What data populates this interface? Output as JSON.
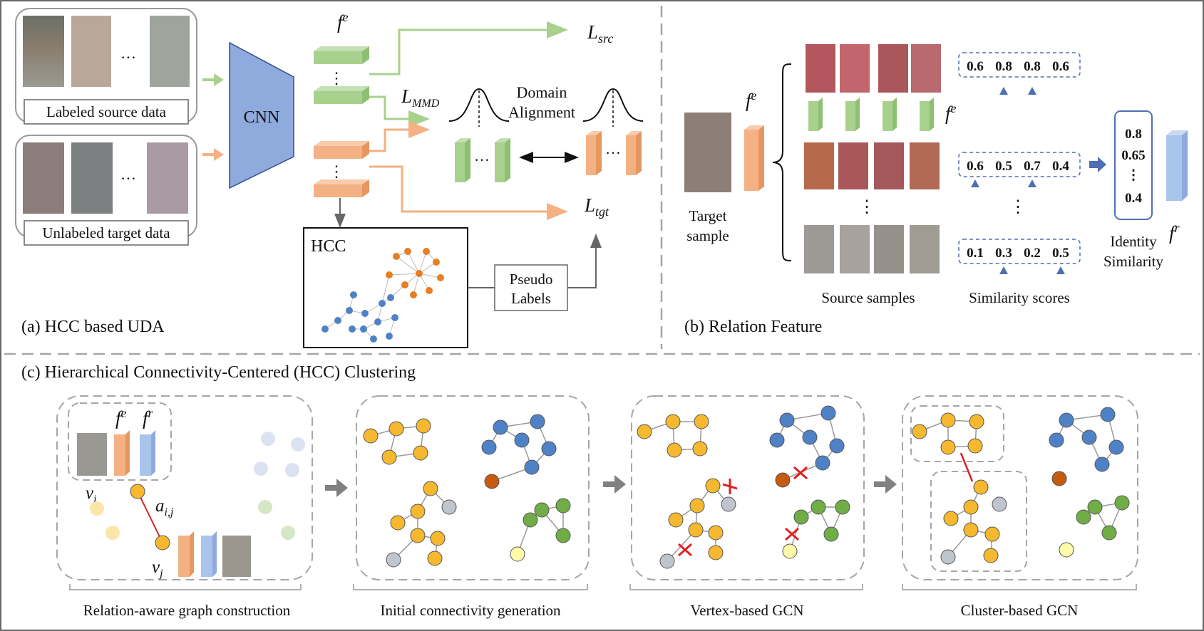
{
  "panel_a": {
    "caption": "(a) HCC based UDA",
    "source_label": "Labeled source data",
    "target_label": "Unlabeled target data",
    "ellipsis": "…",
    "cnn": "CNN",
    "fe_base": "f",
    "fe_sup": "e",
    "l_src_base": "L",
    "l_src_sub": "src",
    "l_mmd_base": "L",
    "l_mmd_sub": "MMD",
    "l_tgt_base": "L",
    "l_tgt_sub": "tgt",
    "domain_alignment_1": "Domain",
    "domain_alignment_2": "Alignment",
    "hcc": "HCC",
    "pseudo_1": "Pseudo",
    "pseudo_2": "Labels",
    "vdots": "⋮"
  },
  "panel_b": {
    "caption": "(b) Relation Feature",
    "target_1": "Target",
    "target_2": "sample",
    "source_samples": "Source samples",
    "similarity_scores": "Similarity scores",
    "identity_1": "Identity",
    "identity_2": "Similarity",
    "fe_base": "f",
    "fe_sup": "e",
    "fr_base": "f",
    "fr_sup": "r",
    "scores_row1": [
      "0.6",
      "0.8",
      "0.8",
      "0.6"
    ],
    "scores_row2": [
      "0.6",
      "0.5",
      "0.7",
      "0.4"
    ],
    "scores_row3": [
      "0.1",
      "0.3",
      "0.2",
      "0.5"
    ],
    "identity_values": [
      "0.8",
      "0.65",
      "⋮",
      "0.4"
    ],
    "vdots": "⋮"
  },
  "panel_c": {
    "caption": "(c) Hierarchical Connectivity-Centered (HCC)  Clustering",
    "step1": "Relation-aware graph construction",
    "step2": "Initial connectivity generation",
    "step3": "Vertex-based GCN",
    "step4": "Cluster-based GCN",
    "vi_base": "v",
    "vi_sub": "i",
    "vj_base": "v",
    "vj_sub": "j",
    "aij_base": "a",
    "aij_sub": "i,j",
    "fe_base": "f",
    "fe_sup": "e",
    "fr_base": "f",
    "fr_sup": "r"
  },
  "colors": {
    "green": "#a9d18e",
    "orange": "#f4b183",
    "cnn": "#8faadc",
    "node_yellow": "#f5b82e",
    "node_blue": "#4f81c7",
    "node_green": "#70ad47",
    "node_gray": "#bfc5cc",
    "node_brown": "#c55a11",
    "node_pale": "#fdfbaa",
    "dashed": "#a6a6a6",
    "red": "#e02020"
  }
}
